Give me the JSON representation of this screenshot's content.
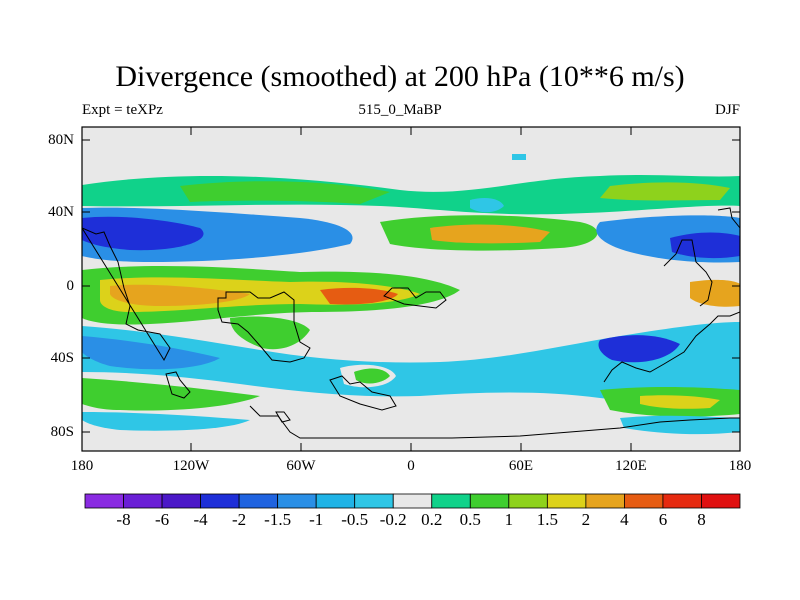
{
  "title": "Divergence (smoothed) at 200 hPa (10**6 m/s)",
  "left_label": "Expt = teXPz",
  "center_label": "515_0_MaBP",
  "right_label": "DJF",
  "lat_ticks": [
    "80N",
    "40N",
    "0",
    "40S",
    "80S"
  ],
  "lon_ticks": [
    "180",
    "120W",
    "60W",
    "0",
    "60E",
    "120E",
    "180"
  ],
  "colorbar": {
    "labels": [
      "-8",
      "-6",
      "-4",
      "-2",
      "-1.5",
      "-1",
      "-0.5",
      "-0.2",
      "0.2",
      "0.5",
      "1",
      "1.5",
      "2",
      "4",
      "6",
      "8"
    ],
    "colors": [
      "#8a2be2",
      "#6a1fd6",
      "#4b18c8",
      "#1e2fd8",
      "#1f63e0",
      "#2a8fe6",
      "#1fb3e6",
      "#2fc6e6",
      "#e8e8e8",
      "#10d28a",
      "#3fce2f",
      "#8ed21c",
      "#dcd21a",
      "#e6a41e",
      "#e65c12",
      "#e62a10",
      "#e01010"
    ]
  },
  "colors": {
    "background": "#e8e8e8",
    "coast": "#000000"
  }
}
